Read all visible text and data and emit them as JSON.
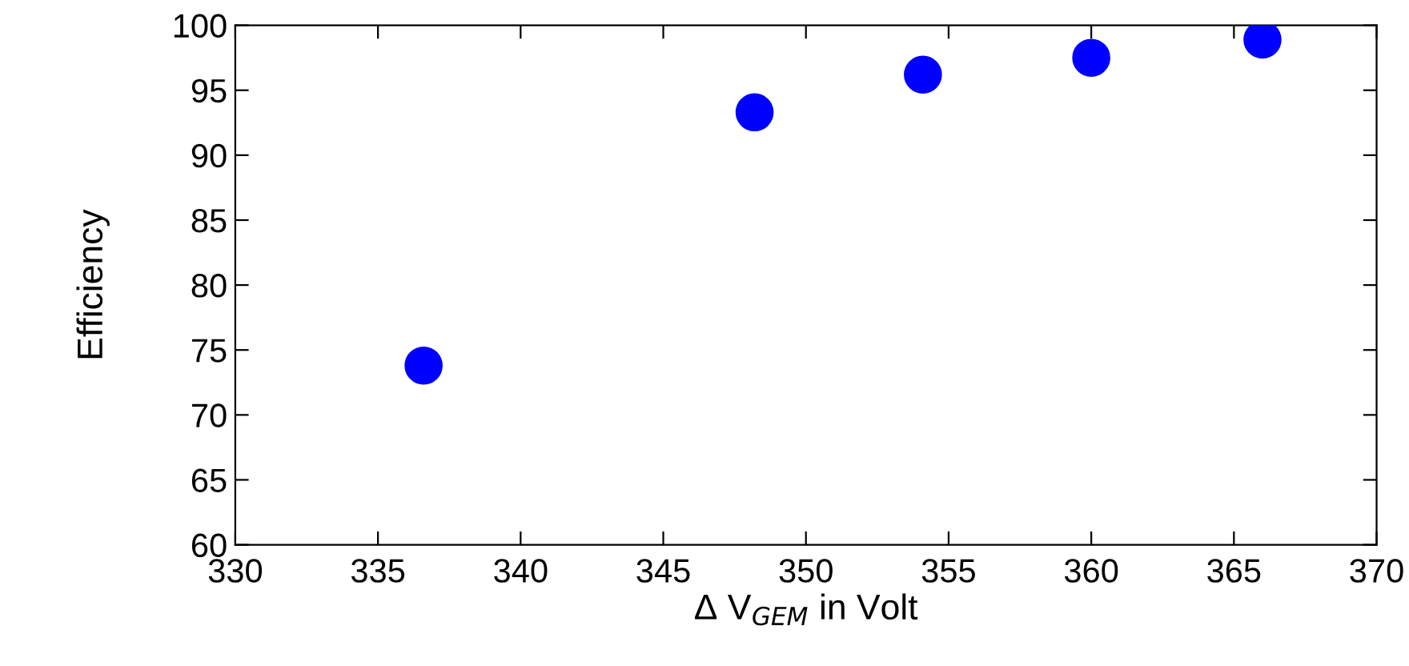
{
  "chart_data": {
    "type": "scatter",
    "xlabel": "Δ V$_{GEM}$ in Volt",
    "ylabel": "Efficiency",
    "x": [
      336.6,
      348.2,
      354.1,
      360.0,
      366.0
    ],
    "series": [
      {
        "color": "#0000ff",
        "values": [
          73.8,
          93.3,
          96.2,
          97.5,
          98.9
        ]
      }
    ],
    "xlim": [
      330,
      370
    ],
    "xticks": [
      330,
      335,
      340,
      345,
      350,
      355,
      360,
      365,
      370
    ],
    "ylim": [
      60,
      100
    ],
    "yticks": [
      60,
      65,
      70,
      75,
      80,
      85,
      90,
      95,
      100
    ],
    "marker": "circle",
    "grid": false,
    "legend": false
  }
}
